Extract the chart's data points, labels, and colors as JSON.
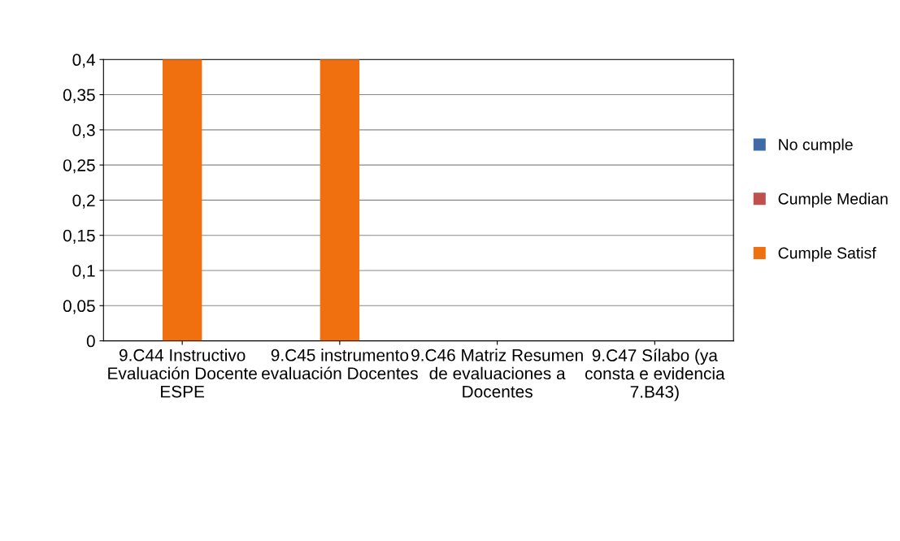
{
  "chart_data": {
    "type": "bar",
    "categories": [
      "9.C44 Instructivo Evaluación Docente ESPE",
      "9.C45 instrumento evaluación Docentes",
      "9.C46 Matriz Resumen de evaluaciones a Docentes",
      "9.C47 Sílabo (ya consta e evidencia 7.B43)"
    ],
    "series": [
      {
        "name": "No cumple",
        "color": "#3f6aa8",
        "values": [
          null,
          null,
          0,
          0
        ]
      },
      {
        "name": "Cumple Median",
        "color": "#c0504d",
        "values": [
          null,
          null,
          null,
          null
        ]
      },
      {
        "name": "Cumple Satisf",
        "color": "#f07010",
        "values": [
          0.4,
          0.4,
          null,
          null
        ]
      }
    ],
    "ylim": [
      0,
      0.4
    ],
    "yticks": [
      0,
      {
        "value": 0.05,
        "label": "0,05"
      },
      {
        "value": 0.1,
        "label": "0,1"
      },
      {
        "value": 0.15,
        "label": "0,15"
      },
      {
        "value": 0.2,
        "label": "0,2"
      },
      {
        "value": 0.25,
        "label": "0,25"
      },
      {
        "value": 0.3,
        "label": "0,3"
      },
      {
        "value": 0.35,
        "label": "0,35"
      },
      {
        "value": 0.4,
        "label": "0,4"
      }
    ],
    "grid": "y",
    "legend": "right"
  }
}
